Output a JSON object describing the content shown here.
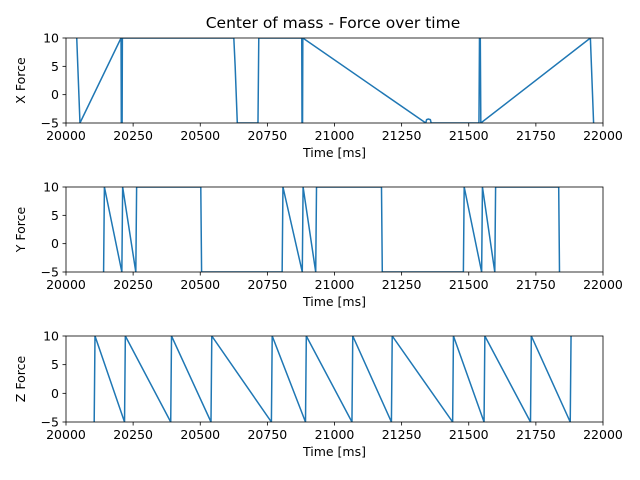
{
  "chart_data": [
    {
      "type": "line",
      "title": "Center of mass - Force over time",
      "xlabel": "Time [ms]",
      "ylabel": "X Force",
      "xlim": [
        20000,
        22000
      ],
      "ylim": [
        -5,
        10
      ],
      "xticks": [
        20000,
        20250,
        20500,
        20750,
        21000,
        21250,
        21500,
        21750,
        22000
      ],
      "yticks": [
        -5,
        0,
        5,
        10
      ],
      "grid": false,
      "color": "#1f77b4",
      "series": [
        {
          "points": [
            [
              20040,
              10
            ],
            [
              20044,
              5
            ],
            [
              20048,
              0
            ],
            [
              20052,
              -5
            ],
            [
              20205,
              10
            ],
            [
              20206,
              -5
            ],
            [
              20209,
              -5
            ],
            [
              20210,
              10
            ],
            [
              20625,
              10
            ],
            [
              20630,
              5
            ],
            [
              20634,
              0
            ],
            [
              20638,
              -5
            ],
            [
              20715,
              -5
            ],
            [
              20718,
              10
            ],
            [
              20878,
              10
            ],
            [
              20879,
              -5
            ],
            [
              20881,
              -5
            ],
            [
              20882,
              10
            ],
            [
              21340,
              -5
            ],
            [
              21343,
              -4.4
            ],
            [
              21350,
              -4.3
            ],
            [
              21357,
              -4.4
            ],
            [
              21360,
              -5
            ],
            [
              21538,
              -5
            ],
            [
              21540,
              10
            ],
            [
              21543,
              10
            ],
            [
              21545,
              -5
            ],
            [
              21953,
              10
            ],
            [
              21957,
              5
            ],
            [
              21961,
              0
            ],
            [
              21965,
              -5
            ]
          ]
        }
      ]
    },
    {
      "type": "line",
      "title": "",
      "xlabel": "Time [ms]",
      "ylabel": "Y Force",
      "xlim": [
        20000,
        22000
      ],
      "ylim": [
        -5,
        10
      ],
      "xticks": [
        20000,
        20250,
        20500,
        20750,
        21000,
        21250,
        21500,
        21750,
        22000
      ],
      "yticks": [
        -5,
        0,
        5,
        10
      ],
      "grid": false,
      "color": "#1f77b4",
      "series": [
        {
          "points": [
            [
              20140,
              -5
            ],
            [
              20143,
              10
            ],
            [
              20208,
              -5
            ],
            [
              20211,
              10
            ],
            [
              20260,
              -5
            ],
            [
              20263,
              10
            ],
            [
              20502,
              10
            ],
            [
              20505,
              -5
            ],
            [
              20805,
              -5
            ],
            [
              20808,
              10
            ],
            [
              20880,
              -5
            ],
            [
              20883,
              10
            ],
            [
              20930,
              -5
            ],
            [
              20933,
              10
            ],
            [
              21175,
              10
            ],
            [
              21178,
              -5
            ],
            [
              21480,
              -5
            ],
            [
              21483,
              10
            ],
            [
              21548,
              -5
            ],
            [
              21551,
              10
            ],
            [
              21597,
              -5
            ],
            [
              21600,
              10
            ],
            [
              21835,
              10
            ],
            [
              21838,
              -5
            ]
          ]
        }
      ]
    },
    {
      "type": "line",
      "title": "",
      "xlabel": "Time [ms]",
      "ylabel": "Z Force",
      "xlim": [
        20000,
        22000
      ],
      "ylim": [
        -5,
        10
      ],
      "xticks": [
        20000,
        20250,
        20500,
        20750,
        21000,
        21250,
        21500,
        21750,
        22000
      ],
      "yticks": [
        -5,
        0,
        5,
        10
      ],
      "grid": false,
      "color": "#1f77b4",
      "series": [
        {
          "points": [
            [
              20105,
              -5
            ],
            [
              20108,
              10
            ],
            [
              20218,
              -5
            ],
            [
              20221,
              10
            ],
            [
              20390,
              -5
            ],
            [
              20393,
              10
            ],
            [
              20540,
              -5
            ],
            [
              20543,
              10
            ],
            [
              20765,
              -5
            ],
            [
              20768,
              10
            ],
            [
              20892,
              -5
            ],
            [
              20895,
              10
            ],
            [
              21065,
              -5
            ],
            [
              21068,
              10
            ],
            [
              21212,
              -5
            ],
            [
              21215,
              10
            ],
            [
              21440,
              -5
            ],
            [
              21443,
              10
            ],
            [
              21557,
              -5
            ],
            [
              21560,
              10
            ],
            [
              21730,
              -5
            ],
            [
              21733,
              10
            ],
            [
              21878,
              -5
            ],
            [
              21881,
              10
            ]
          ]
        }
      ]
    }
  ]
}
